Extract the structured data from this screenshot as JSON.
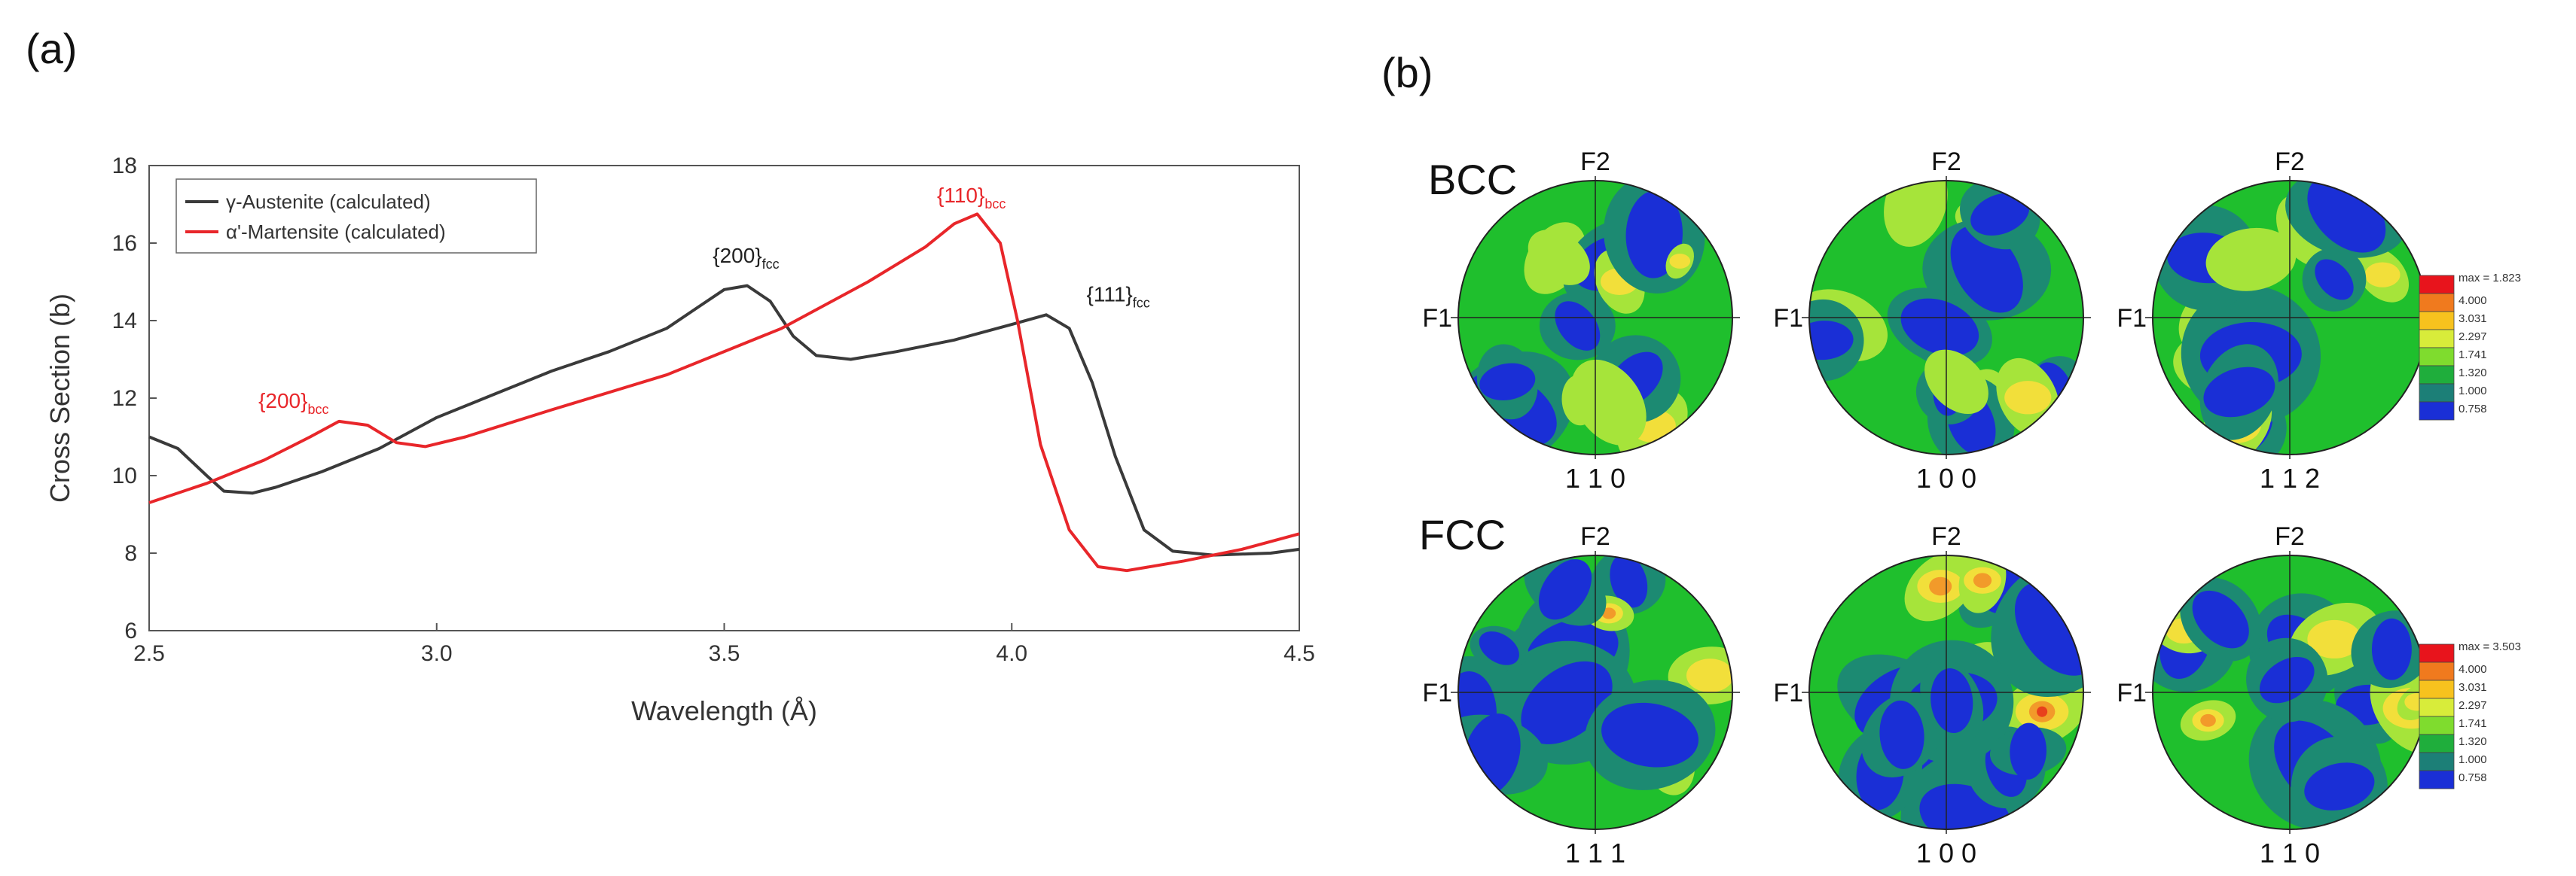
{
  "panel_a": {
    "label": "(a)",
    "chart_data": {
      "type": "line",
      "xlabel": "Wavelength (Å)",
      "ylabel": "Cross Section (b)",
      "xlim": [
        2.5,
        4.5
      ],
      "ylim": [
        6,
        18
      ],
      "xticks": [
        "2.5",
        "3.0",
        "3.5",
        "4.0",
        "4.5"
      ],
      "yticks": [
        "6",
        "8",
        "10",
        "12",
        "14",
        "16",
        "18"
      ],
      "legend_position": "top-left",
      "series": [
        {
          "name": "γ-Austenite (calculated)",
          "color": "#3a3a3a",
          "points": [
            [
              2.5,
              11.0
            ],
            [
              2.55,
              10.7
            ],
            [
              2.6,
              10.0
            ],
            [
              2.63,
              9.6
            ],
            [
              2.68,
              9.55
            ],
            [
              2.72,
              9.7
            ],
            [
              2.8,
              10.1
            ],
            [
              2.9,
              10.7
            ],
            [
              3.0,
              11.5
            ],
            [
              3.1,
              12.1
            ],
            [
              3.2,
              12.7
            ],
            [
              3.3,
              13.2
            ],
            [
              3.4,
              13.8
            ],
            [
              3.45,
              14.3
            ],
            [
              3.5,
              14.8
            ],
            [
              3.54,
              14.9
            ],
            [
              3.58,
              14.5
            ],
            [
              3.62,
              13.6
            ],
            [
              3.66,
              13.1
            ],
            [
              3.72,
              13.0
            ],
            [
              3.8,
              13.2
            ],
            [
              3.9,
              13.5
            ],
            [
              4.0,
              13.9
            ],
            [
              4.06,
              14.15
            ],
            [
              4.1,
              13.8
            ],
            [
              4.14,
              12.4
            ],
            [
              4.18,
              10.5
            ],
            [
              4.23,
              8.6
            ],
            [
              4.28,
              8.05
            ],
            [
              4.35,
              7.95
            ],
            [
              4.45,
              8.0
            ],
            [
              4.5,
              8.1
            ]
          ]
        },
        {
          "name": "α'-Martensite (calculated)",
          "color": "#e8262a",
          "points": [
            [
              2.5,
              9.3
            ],
            [
              2.6,
              9.8
            ],
            [
              2.7,
              10.4
            ],
            [
              2.78,
              11.0
            ],
            [
              2.83,
              11.4
            ],
            [
              2.88,
              11.3
            ],
            [
              2.93,
              10.85
            ],
            [
              2.98,
              10.75
            ],
            [
              3.05,
              11.0
            ],
            [
              3.2,
              11.7
            ],
            [
              3.4,
              12.6
            ],
            [
              3.6,
              13.8
            ],
            [
              3.75,
              15.0
            ],
            [
              3.85,
              15.9
            ],
            [
              3.9,
              16.5
            ],
            [
              3.94,
              16.75
            ],
            [
              3.98,
              16.0
            ],
            [
              4.01,
              14.0
            ],
            [
              4.05,
              10.8
            ],
            [
              4.1,
              8.6
            ],
            [
              4.15,
              7.65
            ],
            [
              4.2,
              7.55
            ],
            [
              4.3,
              7.8
            ],
            [
              4.4,
              8.1
            ],
            [
              4.5,
              8.5
            ]
          ]
        }
      ],
      "annotations": [
        {
          "main": "{200}",
          "sub": "fcc",
          "x": 3.48,
          "y": 15.5,
          "color": "#222222"
        },
        {
          "main": "{111}",
          "sub": "fcc",
          "x": 4.13,
          "y": 14.5,
          "color": "#222222"
        },
        {
          "main": "{200}",
          "sub": "bcc",
          "x": 2.69,
          "y": 11.75,
          "color": "#e8262a"
        },
        {
          "main": "{110}",
          "sub": "bcc",
          "x": 3.87,
          "y": 17.05,
          "color": "#e8262a"
        }
      ]
    }
  },
  "panel_b": {
    "label": "(b)",
    "rows": [
      {
        "name": "BCC",
        "figures": [
          {
            "top": "F2",
            "left": "F1",
            "bottom": "1 1 0"
          },
          {
            "top": "F2",
            "left": "F1",
            "bottom": "1 0 0"
          },
          {
            "top": "F2",
            "left": "F1",
            "bottom": "1 1 2"
          }
        ],
        "scale": {
          "max_label": "max = 1.823",
          "levels": [
            "4.000",
            "3.031",
            "2.297",
            "1.741",
            "1.320",
            "1.000",
            "0.758"
          ]
        }
      },
      {
        "name": "FCC",
        "figures": [
          {
            "top": "F2",
            "left": "F1",
            "bottom": "1 1 1"
          },
          {
            "top": "F2",
            "left": "F1",
            "bottom": "1 0 0"
          },
          {
            "top": "F2",
            "left": "F1",
            "bottom": "1 1 0"
          }
        ],
        "scale": {
          "max_label": "max = 3.503",
          "levels": [
            "4.000",
            "3.031",
            "2.297",
            "1.741",
            "1.320",
            "1.000",
            "0.758"
          ]
        }
      }
    ],
    "scale_colors": [
      "#e8141c",
      "#f07a1e",
      "#f7c21e",
      "#d8ec3a",
      "#7fdc2e",
      "#1fae3c",
      "#1c7f77",
      "#1a2fd6"
    ],
    "base_color": "#1fbf2d",
    "blob_colors": [
      "#1a2fd6",
      "#1c8a72",
      "#a6e43a",
      "#f2df3a",
      "#f29a2a",
      "#e8401c"
    ]
  }
}
